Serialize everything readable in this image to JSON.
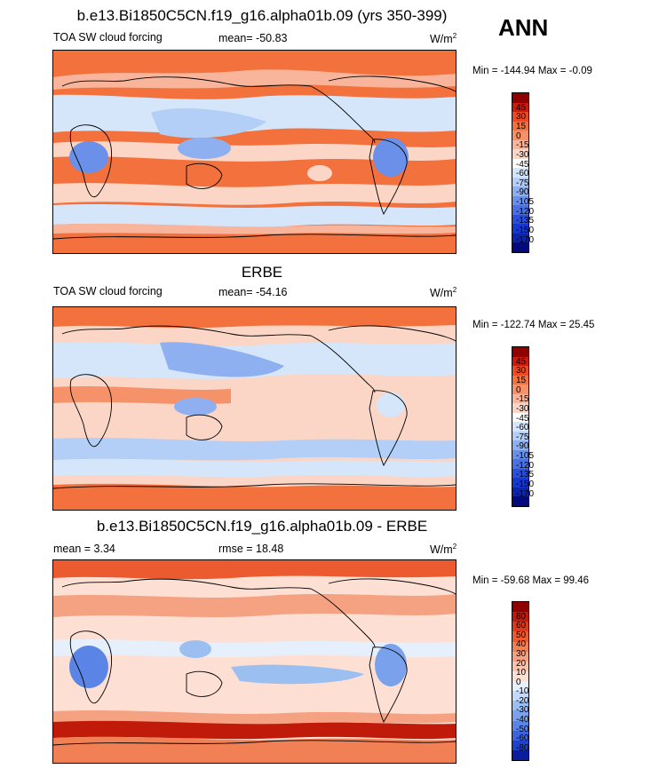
{
  "season": "ANN",
  "colors": {
    "cf_palette": [
      "#8f0000",
      "#cc1a0d",
      "#eb4a24",
      "#f2713d",
      "#f5926a",
      "#f8b59b",
      "#fbd6c7",
      "#ffffff",
      "#d5e6fb",
      "#b3cff7",
      "#8eb0f0",
      "#6a90ea",
      "#4a70e4",
      "#2b4fdb",
      "#1638cc",
      "#0d24a8",
      "#040a7c"
    ],
    "diff_palette": [
      "#8f0000",
      "#c01a0a",
      "#dc3a1a",
      "#ec5a2f",
      "#f28055",
      "#f5a283",
      "#fac3ad",
      "#fde0d3",
      "#e6effc",
      "#c4d9f8",
      "#9cbff2",
      "#7aa2ec",
      "#5a84e6",
      "#3a63dd",
      "#1e42cc",
      "#0a1d9c"
    ]
  },
  "panels": [
    {
      "title": "b.e13.Bi1850C5CN.f19_g16.alpha01b.09 (yrs 350-399)",
      "left": "TOA SW cloud forcing",
      "center": "mean= -50.83",
      "units": "W/m",
      "units_sup": "2",
      "range": "Min = -144.94 Max =  -0.09"
    },
    {
      "title": "ERBE",
      "left": "TOA SW cloud forcing",
      "center": "mean= -54.16",
      "units": "W/m",
      "units_sup": "2",
      "range": "Min = -122.74 Max =  25.45"
    },
    {
      "title": "b.e13.Bi1850C5CN.f19_g16.alpha01b.09 - ERBE",
      "left": "mean =   3.34",
      "center": "rmse =  18.48",
      "units": "W/m",
      "units_sup": "2",
      "range": "Min = -59.68 Max =  99.46"
    }
  ],
  "chart_data": [
    {
      "type": "heatmap",
      "title": "b.e13.Bi1850C5CN.f19_g16.alpha01b.09 (yrs 350-399)",
      "variable": "TOA SW cloud forcing",
      "units": "W/m2",
      "mean": -50.83,
      "min": -144.94,
      "max": -0.09,
      "contour_levels": [
        45,
        30,
        15,
        0,
        -15,
        -30,
        -45,
        -60,
        -75,
        -90,
        -105,
        -120,
        -135,
        -150,
        -170
      ],
      "x_range": [
        30,
        390
      ],
      "y_range": [
        -90,
        90
      ]
    },
    {
      "type": "heatmap",
      "title": "ERBE",
      "variable": "TOA SW cloud forcing",
      "units": "W/m2",
      "mean": -54.16,
      "min": -122.74,
      "max": 25.45,
      "contour_levels": [
        45,
        30,
        15,
        0,
        -15,
        -30,
        -45,
        -60,
        -75,
        -90,
        -105,
        -120,
        -135,
        -150,
        -170
      ],
      "x_range": [
        30,
        390
      ],
      "y_range": [
        -90,
        90
      ]
    },
    {
      "type": "heatmap",
      "title": "b.e13.Bi1850C5CN.f19_g16.alpha01b.09 - ERBE",
      "units": "W/m2",
      "mean": 3.34,
      "rmse": 18.48,
      "min": -59.68,
      "max": 99.46,
      "contour_levels": [
        80,
        60,
        50,
        40,
        30,
        20,
        10,
        0,
        -10,
        -20,
        -30,
        -40,
        -50,
        -60,
        -80
      ],
      "x_range": [
        30,
        390
      ],
      "y_range": [
        -90,
        90
      ]
    }
  ]
}
